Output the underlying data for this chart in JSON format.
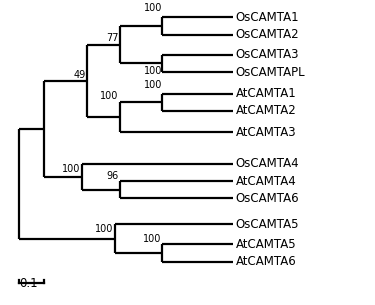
{
  "taxa": [
    "OsCAMTA1",
    "OsCAMTA2",
    "OsCAMTA3",
    "OsCAMTAPL",
    "AtCAMTA1",
    "AtCAMTA2",
    "AtCAMTA3",
    "OsCAMTA4",
    "AtCAMTA4",
    "OsCAMTA6",
    "OsCAMTA5",
    "AtCAMTA5",
    "AtCAMTA6"
  ],
  "scale_label": "0.1",
  "line_color": "black",
  "lw": 1.6,
  "font_size": 8.5,
  "bg_color": "white"
}
